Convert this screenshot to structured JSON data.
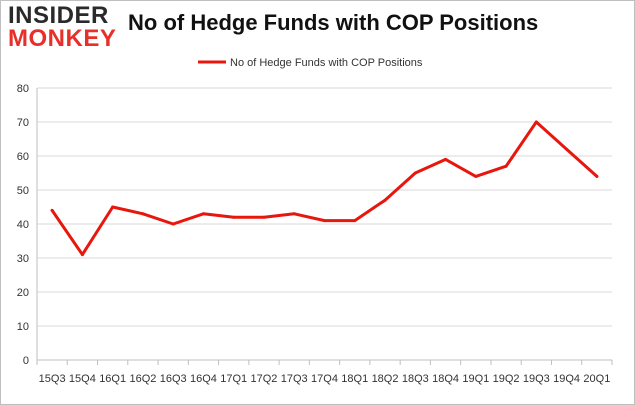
{
  "logo": {
    "line1": "INSIDER",
    "line2": "MONKEY"
  },
  "chart_data": {
    "type": "line",
    "title": "No of Hedge Funds with COP Positions",
    "xlabel": "",
    "ylabel": "",
    "categories": [
      "15Q3",
      "15Q4",
      "16Q1",
      "16Q2",
      "16Q3",
      "16Q4",
      "17Q1",
      "17Q2",
      "17Q3",
      "17Q4",
      "18Q1",
      "18Q2",
      "18Q3",
      "18Q4",
      "19Q1",
      "19Q2",
      "19Q3",
      "19Q4",
      "20Q1"
    ],
    "series": [
      {
        "name": "No of Hedge Funds with COP Positions",
        "color": "#e8170e",
        "values": [
          44,
          31,
          45,
          43,
          40,
          43,
          42,
          42,
          43,
          41,
          41,
          47,
          55,
          59,
          54,
          57,
          70,
          62,
          54
        ]
      }
    ],
    "ylim": [
      0,
      80
    ],
    "yticks": [
      0,
      10,
      20,
      30,
      40,
      50,
      60,
      70,
      80
    ],
    "grid": true,
    "legend": "top-center"
  }
}
